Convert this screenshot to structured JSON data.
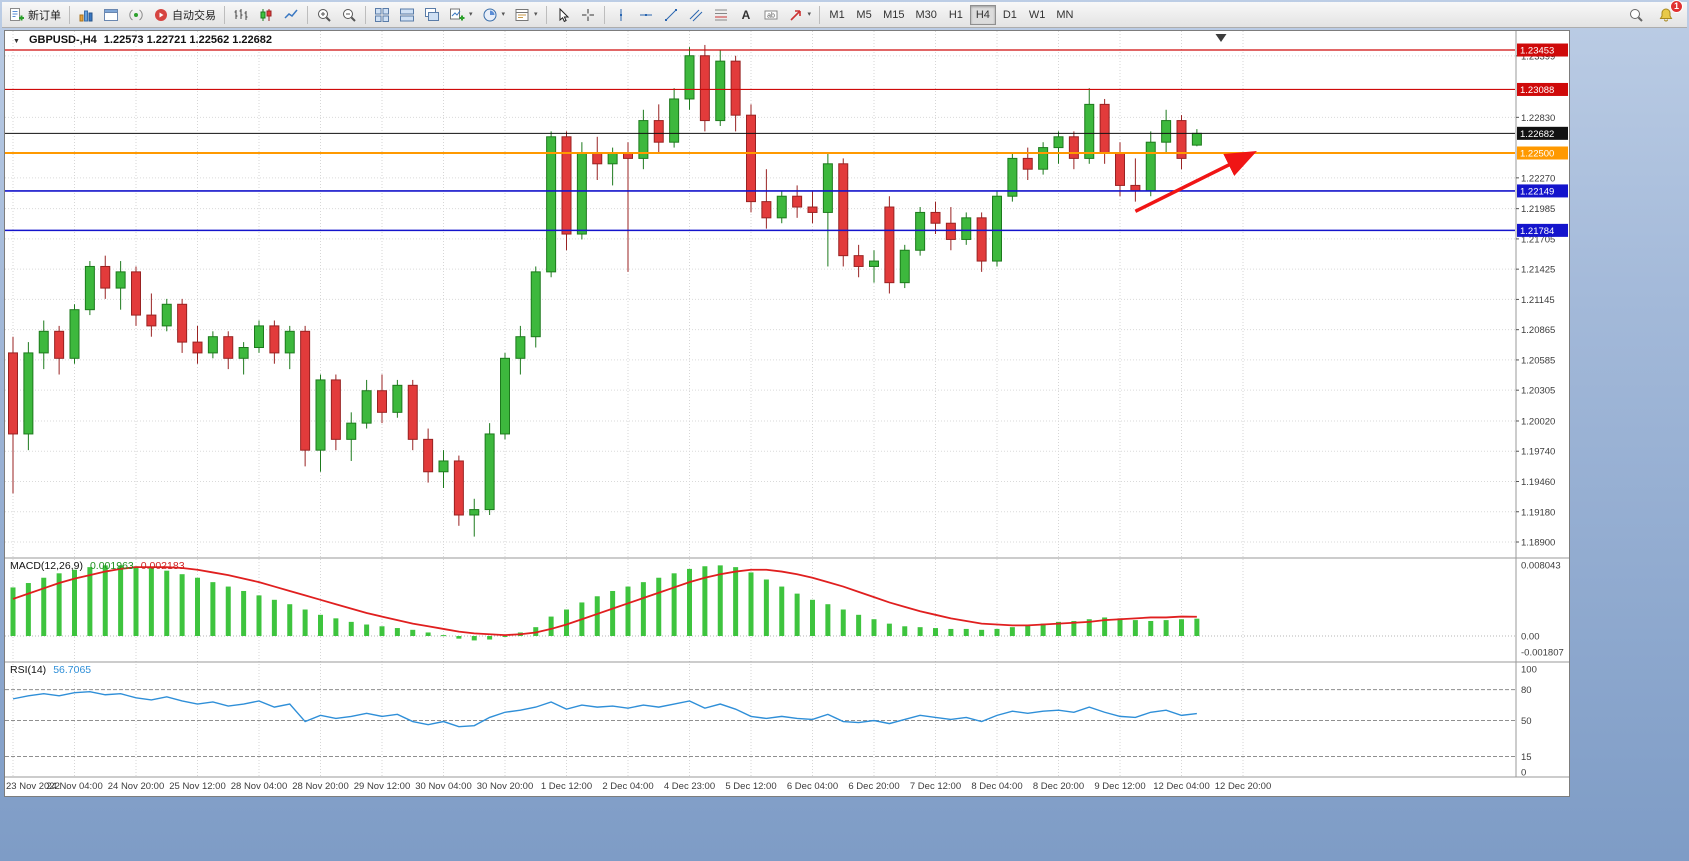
{
  "toolbar": {
    "new_order_label": "新订单",
    "autotrading_label": "自动交易",
    "timeframes": [
      "M1",
      "M5",
      "M15",
      "M30",
      "H1",
      "H4",
      "D1",
      "W1",
      "MN"
    ],
    "active_timeframe": "H4",
    "notification_badge": "1"
  },
  "icons": {
    "dropdown_caret": "▾",
    "one_click": "▼"
  },
  "chart": {
    "symbol_title": "GBPUSD-,H4",
    "ohlc_readout": "1.22573 1.22721 1.22562 1.22682"
  },
  "indicators": {
    "macd": {
      "name": "MACD(12,26,9)",
      "value_main": "0.001963",
      "value_signal": "0.002183"
    },
    "rsi": {
      "name": "RSI(14)",
      "value": "56.7065"
    }
  },
  "chart_data": [
    {
      "type": "candlestick",
      "symbol": "GBPUSD-",
      "timeframe": "H4",
      "open": 1.22573,
      "high": 1.22721,
      "low": 1.22562,
      "close": 1.22682,
      "ylim": [
        1.18752,
        1.23629
      ],
      "candles_per_label": 4,
      "x_labels": [
        "23 Nov 2022",
        "24 Nov 04:00",
        "24 Nov 20:00",
        "25 Nov 12:00",
        "28 Nov 04:00",
        "28 Nov 20:00",
        "29 Nov 12:00",
        "30 Nov 04:00",
        "30 Nov 20:00",
        "1 Dec 12:00",
        "2 Dec 04:00",
        "4 Dec 23:00",
        "5 Dec 12:00",
        "6 Dec 04:00",
        "6 Dec 20:00",
        "7 Dec 12:00",
        "8 Dec 04:00",
        "8 Dec 20:00",
        "9 Dec 12:00",
        "12 Dec 04:00",
        "12 Dec 20:00"
      ],
      "scale_labels": [
        "1.23399",
        "1.22830",
        "1.22270",
        "1.21985",
        "1.21705",
        "1.21425",
        "1.21145",
        "1.20865",
        "1.20585",
        "1.20305",
        "1.20020",
        "1.19740",
        "1.19460",
        "1.19180",
        "1.18900"
      ],
      "hlines": [
        {
          "price": 1.23453,
          "label": "1.23453",
          "color": "#cf0a0a",
          "width": 1.2
        },
        {
          "price": 1.23088,
          "label": "1.23088",
          "color": "#cf0a0a",
          "width": 1.2
        },
        {
          "price": 1.22682,
          "label": "1.22682",
          "color": "#111111",
          "width": 1
        },
        {
          "price": 1.225,
          "label": "1.22500",
          "color": "#ff9900",
          "width": 2
        },
        {
          "price": 1.22149,
          "label": "1.22149",
          "color": "#1414cc",
          "width": 1.6
        },
        {
          "price": 1.21784,
          "label": "1.21784",
          "color": "#1414cc",
          "width": 1.6
        }
      ],
      "trend_arrow": {
        "from_candle": 73,
        "from_price": 1.2196,
        "to_candle": 80.5,
        "to_price": 1.2249,
        "color": "#f01515"
      },
      "up_color": "#3db83d",
      "down_color": "#e23b3b",
      "candles": [
        [
          1.2065,
          1.208,
          1.1935,
          1.199
        ],
        [
          1.199,
          1.2075,
          1.1975,
          1.2065
        ],
        [
          1.2065,
          1.2095,
          1.205,
          1.2085
        ],
        [
          1.2085,
          1.209,
          1.2045,
          1.206
        ],
        [
          1.206,
          1.211,
          1.2055,
          1.2105
        ],
        [
          1.2105,
          1.215,
          1.21,
          1.2145
        ],
        [
          1.2145,
          1.2155,
          1.2115,
          1.2125
        ],
        [
          1.2125,
          1.215,
          1.2105,
          1.214
        ],
        [
          1.214,
          1.2145,
          1.209,
          1.21
        ],
        [
          1.21,
          1.212,
          1.208,
          1.209
        ],
        [
          1.209,
          1.2115,
          1.2085,
          1.211
        ],
        [
          1.211,
          1.2115,
          1.2065,
          1.2075
        ],
        [
          1.2075,
          1.209,
          1.2055,
          1.2065
        ],
        [
          1.2065,
          1.2085,
          1.206,
          1.208
        ],
        [
          1.208,
          1.2085,
          1.205,
          1.206
        ],
        [
          1.206,
          1.2075,
          1.2045,
          1.207
        ],
        [
          1.207,
          1.2095,
          1.2065,
          1.209
        ],
        [
          1.209,
          1.2095,
          1.2055,
          1.2065
        ],
        [
          1.2065,
          1.209,
          1.205,
          1.2085
        ],
        [
          1.2085,
          1.209,
          1.196,
          1.1975
        ],
        [
          1.1975,
          1.2045,
          1.1955,
          1.204
        ],
        [
          1.204,
          1.2045,
          1.1975,
          1.1985
        ],
        [
          1.1985,
          1.201,
          1.1965,
          1.2
        ],
        [
          1.2,
          1.204,
          1.1995,
          1.203
        ],
        [
          1.203,
          1.2045,
          1.2,
          1.201
        ],
        [
          1.201,
          1.204,
          1.2005,
          1.2035
        ],
        [
          1.2035,
          1.204,
          1.1975,
          1.1985
        ],
        [
          1.1985,
          1.1995,
          1.1945,
          1.1955
        ],
        [
          1.1955,
          1.1975,
          1.194,
          1.1965
        ],
        [
          1.1965,
          1.197,
          1.1905,
          1.1915
        ],
        [
          1.1915,
          1.193,
          1.1895,
          1.192
        ],
        [
          1.192,
          1.2,
          1.1915,
          1.199
        ],
        [
          1.199,
          1.2065,
          1.1985,
          1.206
        ],
        [
          1.206,
          1.209,
          1.2045,
          1.208
        ],
        [
          1.208,
          1.2145,
          1.207,
          1.214
        ],
        [
          1.214,
          1.227,
          1.2135,
          1.2265
        ],
        [
          1.2265,
          1.227,
          1.216,
          1.2175
        ],
        [
          1.2175,
          1.226,
          1.217,
          1.225
        ],
        [
          1.225,
          1.2265,
          1.2225,
          1.224
        ],
        [
          1.224,
          1.2255,
          1.222,
          1.225
        ],
        [
          1.225,
          1.226,
          1.214,
          1.2245
        ],
        [
          1.2245,
          1.229,
          1.2235,
          1.228
        ],
        [
          1.228,
          1.2295,
          1.225,
          1.226
        ],
        [
          1.226,
          1.231,
          1.2255,
          1.23
        ],
        [
          1.23,
          1.2348,
          1.229,
          1.234
        ],
        [
          1.234,
          1.235,
          1.227,
          1.228
        ],
        [
          1.228,
          1.2345,
          1.2275,
          1.2335
        ],
        [
          1.2335,
          1.234,
          1.227,
          1.2285
        ],
        [
          1.2285,
          1.2295,
          1.2195,
          1.2205
        ],
        [
          1.2205,
          1.2235,
          1.218,
          1.219
        ],
        [
          1.219,
          1.2215,
          1.2185,
          1.221
        ],
        [
          1.221,
          1.222,
          1.219,
          1.22
        ],
        [
          1.22,
          1.2215,
          1.2185,
          1.2195
        ],
        [
          1.2195,
          1.225,
          1.2145,
          1.224
        ],
        [
          1.224,
          1.2245,
          1.2145,
          1.2155
        ],
        [
          1.2155,
          1.2165,
          1.2135,
          1.2145
        ],
        [
          1.2145,
          1.216,
          1.213,
          1.215
        ],
        [
          1.22,
          1.221,
          1.212,
          1.213
        ],
        [
          1.213,
          1.2165,
          1.2125,
          1.216
        ],
        [
          1.216,
          1.22,
          1.2155,
          1.2195
        ],
        [
          1.2195,
          1.2205,
          1.2175,
          1.2185
        ],
        [
          1.2185,
          1.22,
          1.216,
          1.217
        ],
        [
          1.217,
          1.2195,
          1.2165,
          1.219
        ],
        [
          1.219,
          1.2195,
          1.214,
          1.215
        ],
        [
          1.215,
          1.2215,
          1.2145,
          1.221
        ],
        [
          1.221,
          1.225,
          1.2205,
          1.2245
        ],
        [
          1.2245,
          1.2255,
          1.2225,
          1.2235
        ],
        [
          1.2235,
          1.226,
          1.223,
          1.2255
        ],
        [
          1.2255,
          1.227,
          1.224,
          1.2265
        ],
        [
          1.2265,
          1.227,
          1.2235,
          1.2245
        ],
        [
          1.2245,
          1.231,
          1.224,
          1.2295
        ],
        [
          1.2295,
          1.23,
          1.224,
          1.225
        ],
        [
          1.225,
          1.226,
          1.221,
          1.222
        ],
        [
          1.222,
          1.2245,
          1.2205,
          1.2215
        ],
        [
          1.2215,
          1.227,
          1.221,
          1.226
        ],
        [
          1.226,
          1.229,
          1.225,
          1.228
        ],
        [
          1.228,
          1.2285,
          1.2235,
          1.2245
        ],
        [
          1.22573,
          1.22721,
          1.22562,
          1.22682
        ]
      ]
    },
    {
      "type": "bar",
      "name": "MACD(12,26,9)",
      "main_value": 0.001963,
      "signal_value": 0.002183,
      "ylim": [
        -0.002945,
        0.008835
      ],
      "scale_labels": [
        "0.008043",
        "0.00",
        "-0.001807"
      ],
      "histogram_color": "#3ec43e",
      "signal_color": "#e01f1f",
      "histogram": [
        0.0055,
        0.006,
        0.0066,
        0.0071,
        0.0075,
        0.0078,
        0.008,
        0.008,
        0.0079,
        0.0077,
        0.0074,
        0.007,
        0.0066,
        0.0061,
        0.0056,
        0.0051,
        0.0046,
        0.0041,
        0.0036,
        0.003,
        0.0024,
        0.002,
        0.0016,
        0.0013,
        0.0011,
        0.0009,
        0.0007,
        0.0004,
        0.0001,
        -0.0003,
        -0.0005,
        -0.0004,
        -0.0001,
        0.0004,
        0.001,
        0.0022,
        0.003,
        0.0038,
        0.0045,
        0.0051,
        0.0056,
        0.0061,
        0.0066,
        0.0071,
        0.0076,
        0.0079,
        0.008,
        0.0078,
        0.0072,
        0.0064,
        0.0056,
        0.0048,
        0.0041,
        0.0036,
        0.003,
        0.0024,
        0.0019,
        0.0014,
        0.0011,
        0.001,
        0.0009,
        0.0008,
        0.0008,
        0.0007,
        0.0008,
        0.001,
        0.0012,
        0.0014,
        0.0016,
        0.0017,
        0.0019,
        0.0021,
        0.002,
        0.0018,
        0.0017,
        0.0018,
        0.0019,
        0.001963
      ],
      "signal": [
        0.0042,
        0.0048,
        0.0054,
        0.006,
        0.0065,
        0.0069,
        0.0073,
        0.0076,
        0.0078,
        0.0078,
        0.0078,
        0.0077,
        0.0075,
        0.0072,
        0.0069,
        0.0065,
        0.0061,
        0.0056,
        0.0051,
        0.0046,
        0.0041,
        0.0036,
        0.0031,
        0.0026,
        0.0022,
        0.0018,
        0.0014,
        0.0011,
        0.0008,
        0.0005,
        0.0003,
        0.0002,
        0.0001,
        0.0002,
        0.0004,
        0.0008,
        0.0013,
        0.0019,
        0.0025,
        0.0031,
        0.0037,
        0.0043,
        0.0049,
        0.0055,
        0.0061,
        0.0066,
        0.007,
        0.0073,
        0.0075,
        0.0075,
        0.0073,
        0.007,
        0.0066,
        0.0061,
        0.0056,
        0.005,
        0.0044,
        0.0038,
        0.0033,
        0.0028,
        0.0024,
        0.002,
        0.0017,
        0.0014,
        0.0013,
        0.0012,
        0.0012,
        0.0013,
        0.0014,
        0.0015,
        0.0016,
        0.0018,
        0.0019,
        0.002,
        0.0021,
        0.0021,
        0.0022,
        0.002183
      ]
    },
    {
      "type": "line",
      "name": "RSI(14)",
      "last_value": 56.7065,
      "ylim": [
        -4.85,
        106.8
      ],
      "levels": [
        80,
        50,
        15
      ],
      "scale_labels": [
        "100",
        "80",
        "50",
        "15",
        "0"
      ],
      "line_color": "#2f8fd8",
      "values": [
        71,
        74,
        76,
        74,
        77,
        78,
        75,
        76,
        72,
        70,
        73,
        69,
        66,
        68,
        64,
        66,
        69,
        63,
        66,
        49,
        55,
        52,
        54,
        57,
        54,
        56,
        49,
        46,
        49,
        44,
        45,
        53,
        58,
        60,
        63,
        68,
        61,
        65,
        63,
        64,
        62,
        65,
        63,
        66,
        69,
        62,
        66,
        61,
        54,
        52,
        54,
        52,
        51,
        56,
        49,
        48,
        50,
        47,
        51,
        55,
        53,
        51,
        53,
        49,
        55,
        59,
        57,
        59,
        60,
        58,
        63,
        58,
        54,
        53,
        58,
        60,
        55,
        56.7065
      ]
    }
  ]
}
